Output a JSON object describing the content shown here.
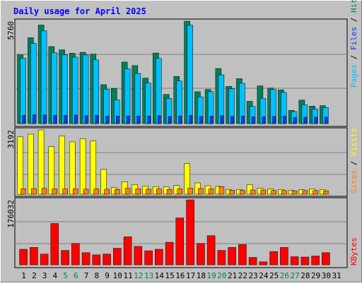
{
  "chart_data": [
    {
      "type": "bar",
      "title": "Daily usage for April 2025",
      "legend": [
        "Pages",
        "Files",
        "Hits"
      ],
      "ymax_label": "5760",
      "days": [
        "1",
        "2",
        "3",
        "4",
        "5",
        "6",
        "7",
        "8",
        "9",
        "10",
        "11",
        "12",
        "13",
        "14",
        "15",
        "16",
        "17",
        "18",
        "19",
        "20",
        "21",
        "22",
        "23",
        "24",
        "25",
        "26",
        "27",
        "28",
        "29",
        "30",
        "31"
      ],
      "weekend_days": [
        "5",
        "6",
        "12",
        "13",
        "19",
        "20",
        "26",
        "27"
      ],
      "series": [
        {
          "name": "Hits",
          "values": [
            3870,
            4830,
            5540,
            4330,
            4150,
            3960,
            4010,
            3910,
            2190,
            1970,
            3460,
            3260,
            2560,
            3970,
            1640,
            2650,
            5760,
            1790,
            1920,
            3100,
            2090,
            2530,
            1250,
            2120,
            2000,
            1890,
            740,
            1320,
            980,
            1010,
            null
          ]
        },
        {
          "name": "Files",
          "values": [
            3680,
            4510,
            5210,
            3980,
            3870,
            3740,
            3860,
            3590,
            1930,
            1340,
            3080,
            2820,
            2280,
            3670,
            1420,
            2390,
            5540,
            1500,
            1800,
            2740,
            1960,
            2270,
            960,
            1420,
            1920,
            1750,
            680,
            1060,
            820,
            900,
            null
          ]
        },
        {
          "name": "Pages",
          "values": [
            470,
            500,
            490,
            470,
            460,
            480,
            450,
            470,
            420,
            420,
            430,
            420,
            430,
            450,
            400,
            430,
            470,
            410,
            420,
            440,
            410,
            430,
            380,
            390,
            410,
            420,
            340,
            370,
            360,
            360,
            null
          ]
        }
      ]
    },
    {
      "type": "bar",
      "legend": [
        "Sites",
        "Visits"
      ],
      "ymax_label": "3192",
      "series": [
        {
          "name": "Visits",
          "values": [
            2850,
            2980,
            3192,
            2360,
            2890,
            2600,
            2760,
            2650,
            1230,
            330,
            620,
            480,
            410,
            380,
            360,
            430,
            1520,
            560,
            420,
            390,
            240,
            230,
            480,
            290,
            260,
            230,
            190,
            220,
            270,
            230,
            null
          ]
        },
        {
          "name": "Sites",
          "values": [
            270,
            280,
            290,
            270,
            260,
            270,
            250,
            260,
            250,
            240,
            290,
            270,
            250,
            260,
            240,
            260,
            300,
            280,
            260,
            380,
            200,
            190,
            210,
            210,
            190,
            180,
            170,
            180,
            180,
            170,
            null
          ]
        }
      ]
    },
    {
      "type": "bar",
      "legend": [
        "KBytes"
      ],
      "ymax_label": "176032",
      "series": [
        {
          "name": "KBytes",
          "values": [
            42000,
            47000,
            29000,
            112000,
            39000,
            58000,
            33000,
            27000,
            29000,
            45000,
            76000,
            50000,
            38000,
            42000,
            61000,
            127000,
            176032,
            58000,
            79000,
            39000,
            47000,
            55000,
            20000,
            8000,
            36000,
            47000,
            22000,
            21000,
            24000,
            33000,
            null
          ]
        }
      ]
    }
  ],
  "colors": {
    "hits": "#00805c",
    "files": "#00c0ff",
    "pages": "#0040ff",
    "visits": "#ffff00",
    "sites": "#ff8000",
    "kbytes": "#ff0000",
    "title": "#0000ff",
    "weekend": "#00805c",
    "plot_bg": "#c0c0c0"
  }
}
